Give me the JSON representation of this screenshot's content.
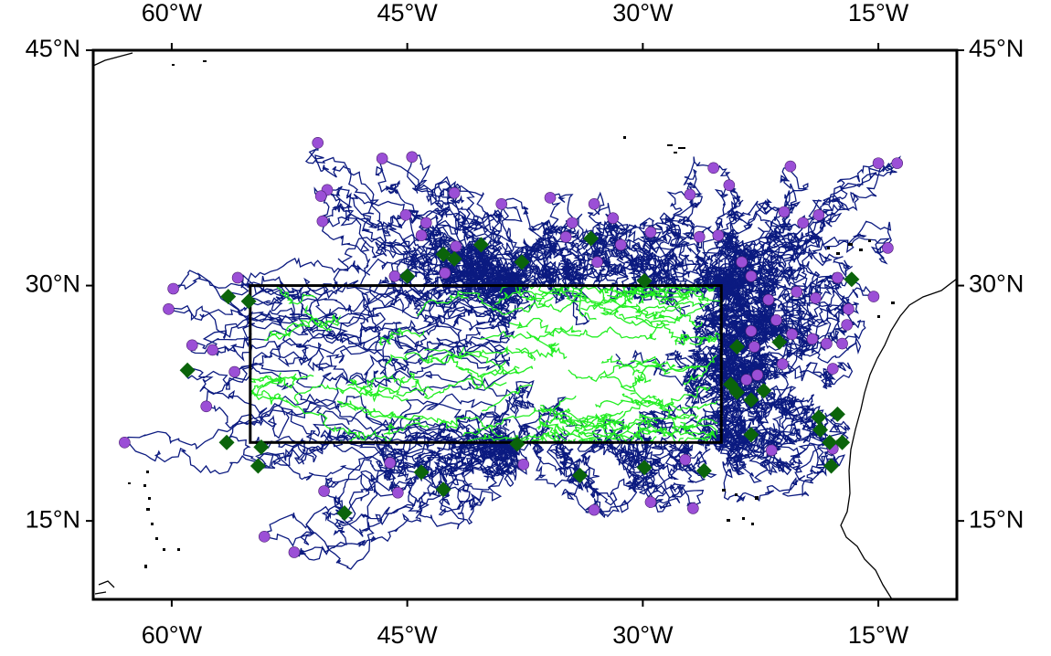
{
  "chart_data": {
    "type": "map",
    "xlim": [
      -65,
      -10
    ],
    "ylim": [
      10,
      45
    ],
    "xticks": [
      {
        "value": -60,
        "label": "60°W"
      },
      {
        "value": -45,
        "label": "45°W"
      },
      {
        "value": -30,
        "label": "30°W"
      },
      {
        "value": -15,
        "label": "15°W"
      }
    ],
    "yticks": [
      {
        "value": 15,
        "label": "15°N"
      },
      {
        "value": 30,
        "label": "30°N"
      },
      {
        "value": 45,
        "label": "45°N"
      }
    ],
    "region": {
      "x": [
        -55,
        -25
      ],
      "y": [
        20,
        30
      ]
    },
    "series": [
      {
        "marker": "circle",
        "color": "#9b4fd6",
        "x": [
          -50.7,
          -46.6,
          -44.7,
          -50.1,
          -50.5,
          -42.0,
          -39.0,
          -35.9,
          -33.1,
          -45.1,
          -43.8,
          -50.4,
          -44.1,
          -41.9,
          -34.9,
          -34.5,
          -31.9,
          -29.5,
          -31.4,
          -32.9,
          -27.0,
          -25.5,
          -24.5,
          -20.6,
          -15.0,
          -13.8,
          -21.0,
          -18.8,
          -19.8,
          -14.4,
          -26.4,
          -25.2,
          -23.7,
          -23.1,
          -22.0,
          -20.2,
          -19.0,
          -17.6,
          -16.9,
          -15.3,
          -59.9,
          -60.2,
          -55.8,
          -58.7,
          -57.4,
          -56.0,
          -57.8,
          -63.0,
          -54.1,
          -52.2,
          -50.3,
          -45.6,
          -46.1,
          -37.6,
          -33.1,
          -29.5,
          -26.8,
          -27.3,
          -21.8,
          -17.9,
          -17.9,
          -23.1,
          -22.9,
          -21.5,
          -21.1,
          -20.5,
          -19.2,
          -18.3,
          -17.3,
          -17.0,
          -23.4,
          -22.7,
          -45.8,
          -42.6
        ],
        "y": [
          39.1,
          38.1,
          38.2,
          36.1,
          35.7,
          35.9,
          35.2,
          35.6,
          35.2,
          34.5,
          34.0,
          34.1,
          33.2,
          32.5,
          33.1,
          34.0,
          34.3,
          33.4,
          32.6,
          31.5,
          35.8,
          37.5,
          36.4,
          37.6,
          37.8,
          37.8,
          34.7,
          34.5,
          34.0,
          32.4,
          33.1,
          33.2,
          31.5,
          30.6,
          29.1,
          29.6,
          29.2,
          30.5,
          28.5,
          29.3,
          29.8,
          28.5,
          30.5,
          26.2,
          25.9,
          24.5,
          22.3,
          20.0,
          14.0,
          13.0,
          16.9,
          16.8,
          18.7,
          18.6,
          15.7,
          16.2,
          15.8,
          18.9,
          19.5,
          24.7,
          19.6,
          27.1,
          26.1,
          27.8,
          25.0,
          26.9,
          26.6,
          26.3,
          26.3,
          27.5,
          24.0,
          24.3,
          30.6,
          30.8
        ]
      },
      {
        "marker": "diamond",
        "color": "#0b640b",
        "x": [
          -56.4,
          -59.0,
          -56.5,
          -54.3,
          -54.5,
          -49.0,
          -45.0,
          -42.7,
          -42.0,
          -40.3,
          -37.7,
          -33.3,
          -29.9,
          -38.0,
          -34.0,
          -44.1,
          -42.7,
          -29.9,
          -26.1,
          -24.4,
          -24.0,
          -24.0,
          -23.1,
          -22.3,
          -21.3,
          -23.1,
          -18.8,
          -18.7,
          -17.6,
          -18.1,
          -17.3,
          -18.0,
          -16.7,
          -55.1
        ],
        "y": [
          29.3,
          24.6,
          20.0,
          19.7,
          18.5,
          15.5,
          30.6,
          32.0,
          31.7,
          32.6,
          31.5,
          33.0,
          30.3,
          19.9,
          17.9,
          18.1,
          17.0,
          18.4,
          18.2,
          23.7,
          26.1,
          23.2,
          22.7,
          23.3,
          26.4,
          20.5,
          21.6,
          20.8,
          21.8,
          20.0,
          20.0,
          18.5,
          30.4,
          29.0
        ]
      }
    ]
  }
}
